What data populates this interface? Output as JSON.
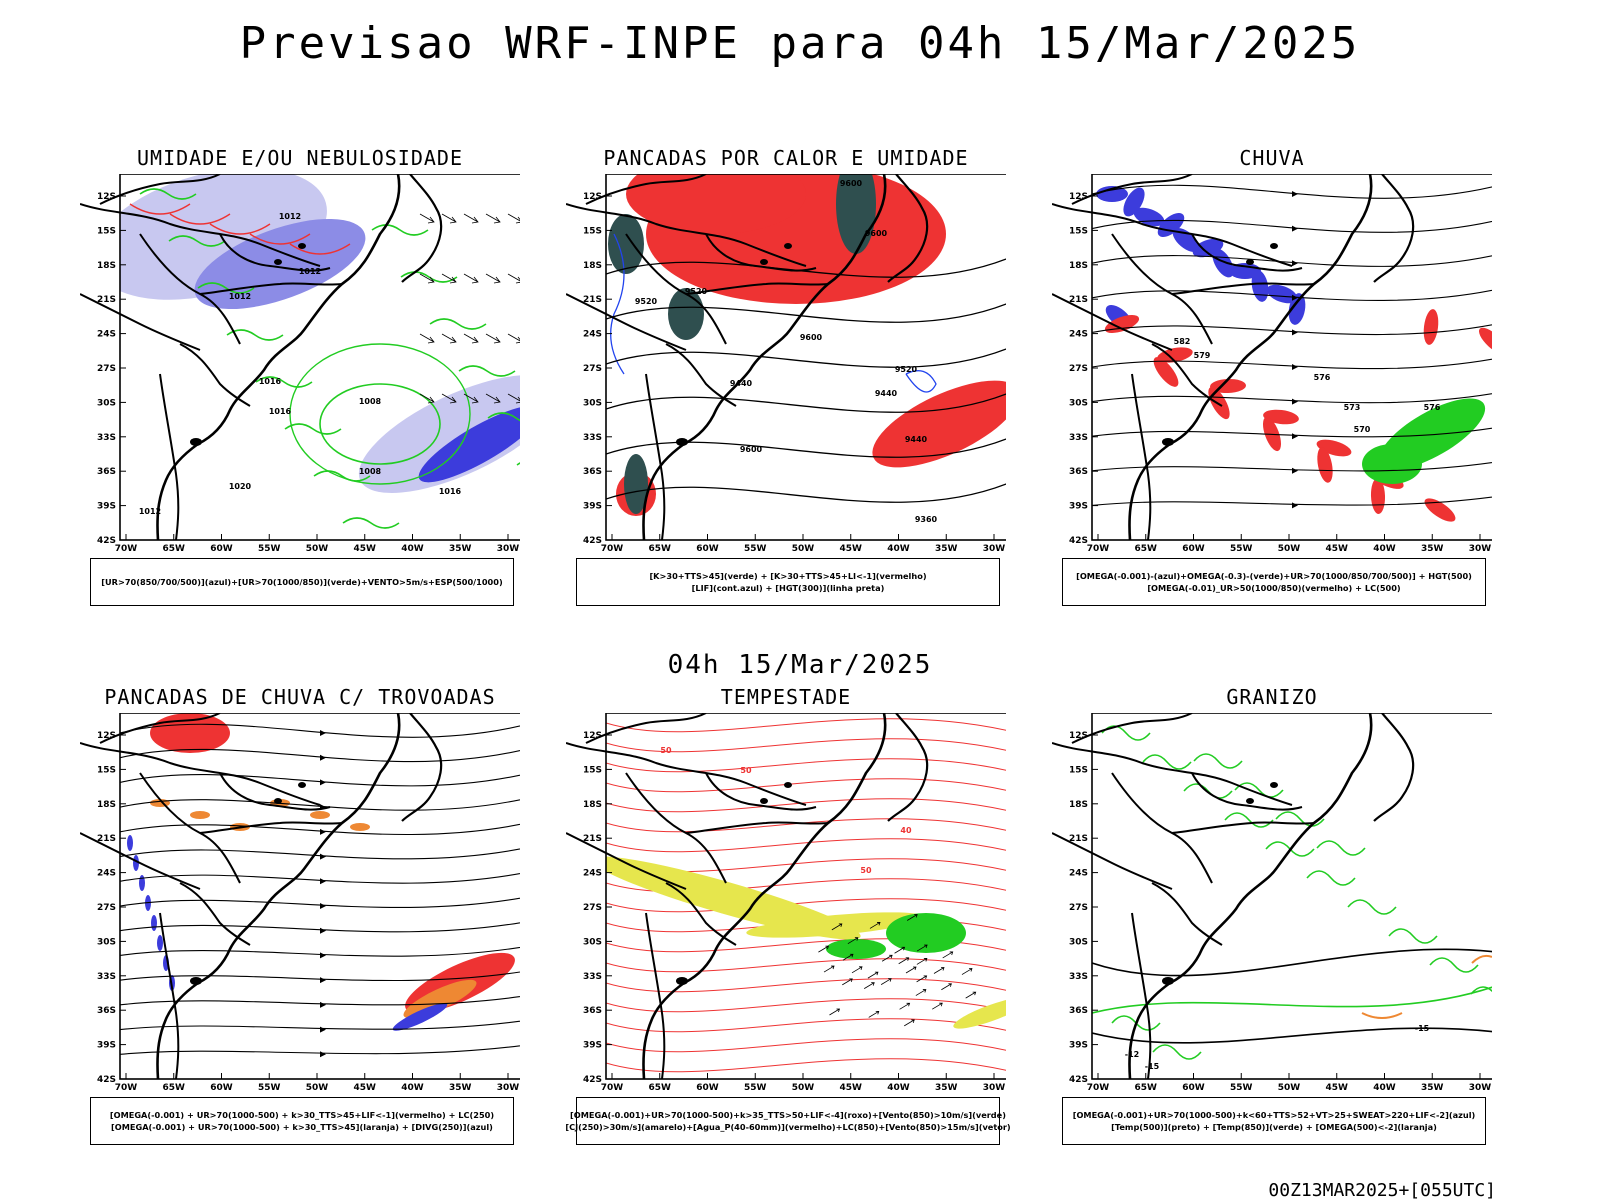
{
  "title": "Previsao WRF-INPE  para 04h 15/Mar/2025",
  "mid_label": "04h 15/Mar/2025",
  "footer": "00Z13MAR2025+[055UTC]",
  "axes": {
    "lat_labels": [
      "12S",
      "15S",
      "18S",
      "21S",
      "24S",
      "27S",
      "30S",
      "33S",
      "36S",
      "39S",
      "42S"
    ],
    "lon_labels": [
      "70W",
      "65W",
      "60W",
      "55W",
      "50W",
      "45W",
      "40W",
      "35W",
      "30W"
    ]
  },
  "colors": {
    "light_blue": "#c8c8f0",
    "mid_blue": "#8c8ce6",
    "dark_blue": "#3c3cdc",
    "green": "#22cc22",
    "red": "#ee3333",
    "dark_teal": "#2f4f4f",
    "yellow": "#e6e64d",
    "orange": "#ee8833",
    "blue_contour": "#2244ee"
  },
  "panels": [
    {
      "id": "umidade",
      "title": "UMIDADE E/OU NEBULOSIDADE",
      "caption": [
        "[UR>70(850/700/500)](azul)+[UR>70(1000/850)](verde)+VENTO>5m/s+ESP(500/1000)"
      ],
      "contour_labels": [
        "1012",
        "1012",
        "1012",
        "1016",
        "1016",
        "1008",
        "1008",
        "1016",
        "1020",
        "1012"
      ]
    },
    {
      "id": "pancadas_calor",
      "title": "PANCADAS POR CALOR E UMIDADE",
      "caption": [
        "[K>30+TTS>45](verde) + [K>30+TTS>45+LI<-1](vermelho)",
        "[LIF](cont.azul) + [HGT(300)](linha preta)"
      ],
      "contour_labels": [
        "9600",
        "9600",
        "9520",
        "9600",
        "9520",
        "9440",
        "9440",
        "9600",
        "9520",
        "9440",
        "9360"
      ]
    },
    {
      "id": "chuva",
      "title": "CHUVA",
      "caption": [
        "[OMEGA(-0.001)-(azul)+OMEGA(-0.3)-(verde)+UR>70(1000/850/700/500)] + HGT(500)",
        "[OMEGA(-0.01)_UR>50(1000/850)(vermelho) + LC(500)"
      ],
      "contour_labels": [
        "582",
        "579",
        "576",
        "573",
        "570",
        "576"
      ]
    },
    {
      "id": "pancadas_trovoadas",
      "title": "PANCADAS DE CHUVA C/ TROVOADAS",
      "caption": [
        "[OMEGA(-0.001) + UR>70(1000-500) + k>30_TTS>45+LIF<-1](vermelho) + LC(250)",
        "[OMEGA(-0.001) + UR>70(1000-500) + k>30_TTS>45](laranja) + [DIVG(250)](azul)"
      ],
      "contour_labels": []
    },
    {
      "id": "tempestade",
      "title": "TEMPESTADE",
      "caption": [
        "[OMEGA(-0.001)+UR>70(1000-500)+k>35_TTS>50+LIF<-4](roxo)+[Vento(850)>10m/s](verde)",
        "[CJ(250)>30m/s](amarelo)+[Agua_P(40-60mm)](vermelho)+LC(850)+[Vento(850)>15m/s](vetor)"
      ],
      "contour_labels": [
        "50",
        "50",
        "40",
        "50"
      ]
    },
    {
      "id": "granizo",
      "title": "GRANIZO",
      "caption": [
        "[OMEGA(-0.001)+UR>70(1000-500)+k<60+TTS>52+VT>25+SWEAT>220+LIF<-2](azul)",
        "[Temp(500)](preto) + [Temp(850)](verde) + [OMEGA(500)<-2](laranja)"
      ],
      "contour_labels": [
        "-15",
        "-12",
        "-15"
      ]
    }
  ]
}
